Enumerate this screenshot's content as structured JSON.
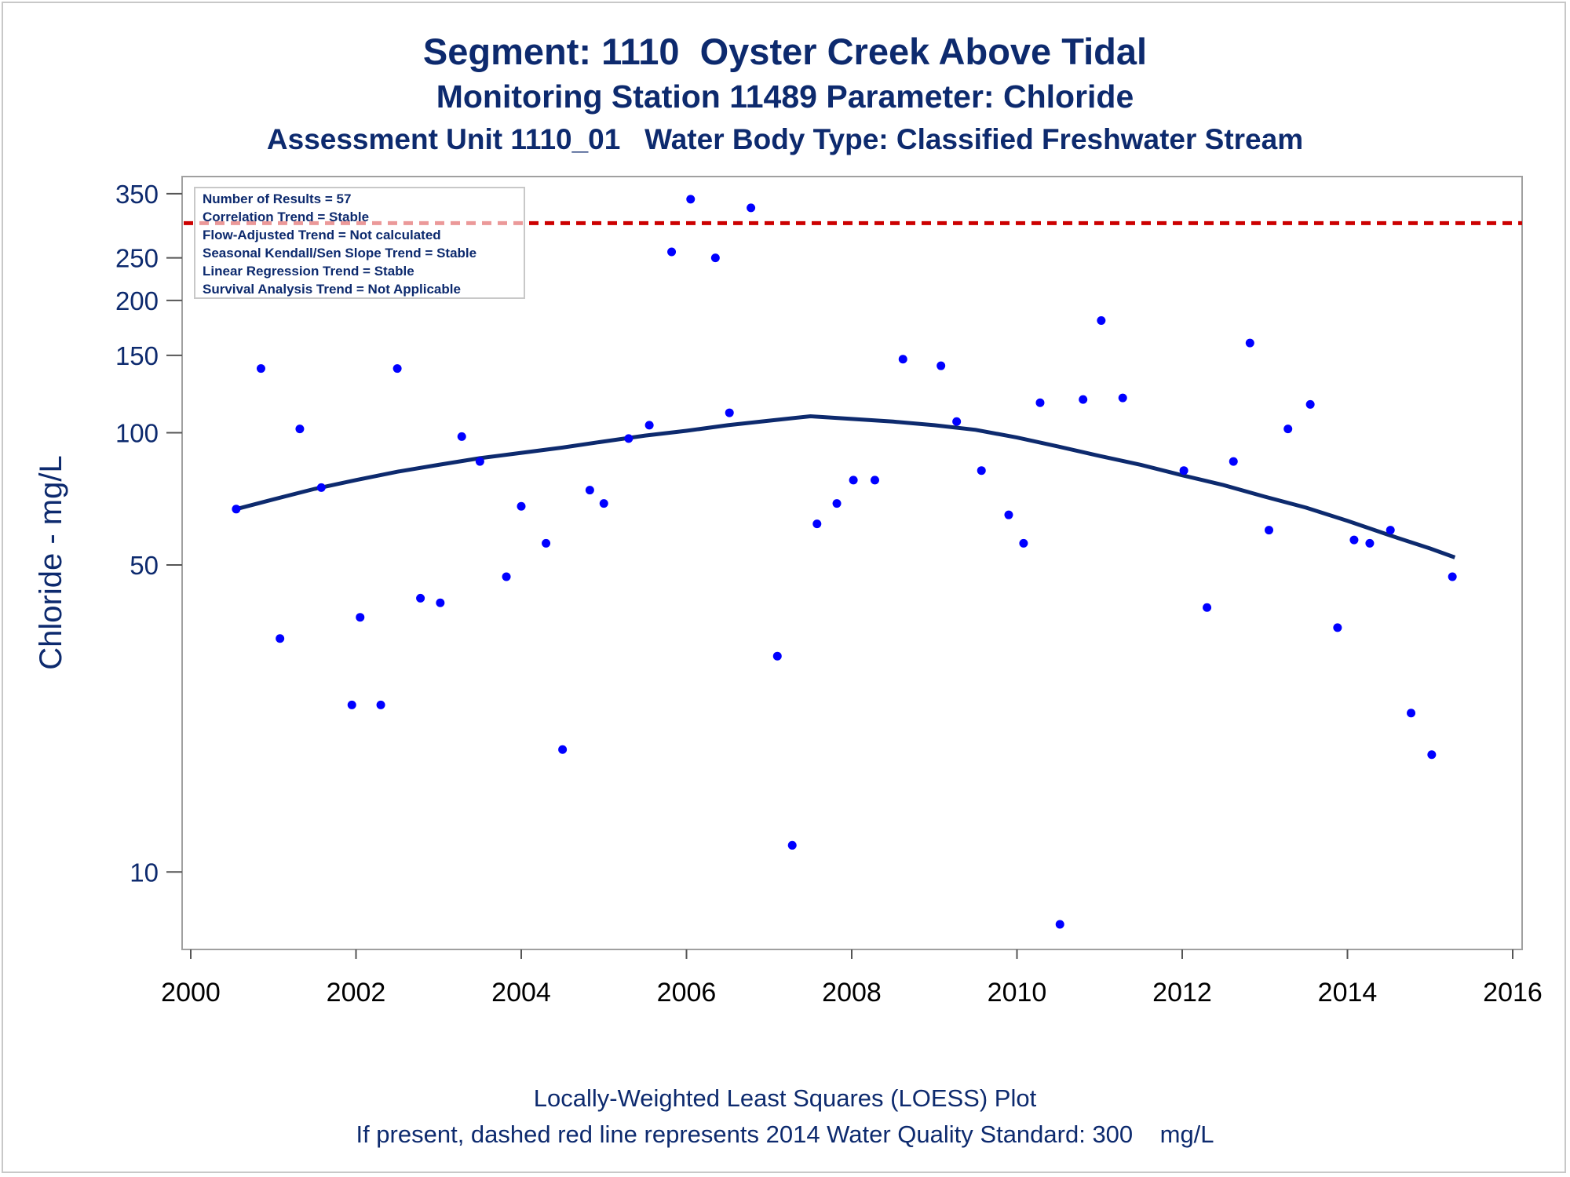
{
  "header": {
    "title": "Segment: 1110  Oyster Creek Above Tidal",
    "subtitle1": "Monitoring Station 11489 Parameter: Chloride",
    "subtitle2": "Assessment Unit 1110_01   Water Body Type: Classified Freshwater Stream"
  },
  "footer": {
    "line1": "Locally-Weighted Least Squares (LOESS) Plot",
    "line2": "If present, dashed red line represents 2014 Water Quality Standard: 300    mg/L"
  },
  "stats_box": {
    "lines": [
      "Number of Results = 57",
      "Correlation Trend = Stable",
      "Flow-Adjusted Trend = Not calculated",
      "Seasonal Kendall/Sen Slope Trend = Stable",
      "Linear Regression Trend = Stable",
      "Survival Analysis Trend = Not Applicable"
    ]
  },
  "colors": {
    "points": "#0000ff",
    "loess": "#0d2a6e",
    "standard_line": "#cc0000",
    "text": "#0d2a6e"
  },
  "chart_data": {
    "type": "scatter",
    "ylabel": "Chloride - mg/L",
    "xlabel": "",
    "y_scale": "log",
    "xlim": [
      2000,
      2016
    ],
    "ylim": [
      7,
      360
    ],
    "x_ticks": [
      2000,
      2002,
      2004,
      2006,
      2008,
      2010,
      2012,
      2014,
      2016
    ],
    "y_ticks": [
      10,
      50,
      100,
      150,
      200,
      250,
      350
    ],
    "grid": false,
    "standard_line": {
      "value": 300,
      "style": "dashed",
      "color": "#cc0000"
    },
    "series": [
      {
        "kind": "points",
        "points": [
          [
            2000.55,
            67
          ],
          [
            2000.85,
            140
          ],
          [
            2001.08,
            34
          ],
          [
            2001.32,
            102
          ],
          [
            2001.58,
            75
          ],
          [
            2001.95,
            24
          ],
          [
            2002.05,
            38
          ],
          [
            2002.3,
            24
          ],
          [
            2002.5,
            140
          ],
          [
            2002.78,
            42
          ],
          [
            2003.02,
            41
          ],
          [
            2003.28,
            98
          ],
          [
            2003.5,
            86
          ],
          [
            2003.82,
            47
          ],
          [
            2004.0,
            68
          ],
          [
            2004.3,
            56
          ],
          [
            2004.5,
            19
          ],
          [
            2004.83,
            74
          ],
          [
            2005.0,
            69
          ],
          [
            2005.3,
            97
          ],
          [
            2005.55,
            104
          ],
          [
            2005.82,
            258
          ],
          [
            2006.05,
            340
          ],
          [
            2006.35,
            250
          ],
          [
            2006.52,
            111
          ],
          [
            2006.78,
            325
          ],
          [
            2007.1,
            31
          ],
          [
            2007.28,
            11.5
          ],
          [
            2007.58,
            62
          ],
          [
            2007.82,
            69
          ],
          [
            2008.02,
            78
          ],
          [
            2008.28,
            78
          ],
          [
            2008.62,
            147
          ],
          [
            2009.08,
            142
          ],
          [
            2009.27,
            106
          ],
          [
            2009.57,
            82
          ],
          [
            2009.9,
            65
          ],
          [
            2010.08,
            56
          ],
          [
            2010.52,
            7.6
          ],
          [
            2010.28,
            117
          ],
          [
            2010.8,
            119
          ],
          [
            2011.02,
            180
          ],
          [
            2011.28,
            120
          ],
          [
            2012.02,
            82
          ],
          [
            2012.3,
            40
          ],
          [
            2012.62,
            86
          ],
          [
            2012.82,
            160
          ],
          [
            2013.05,
            60
          ],
          [
            2013.28,
            102
          ],
          [
            2013.55,
            116
          ],
          [
            2013.88,
            36
          ],
          [
            2014.08,
            57
          ],
          [
            2014.27,
            56
          ],
          [
            2014.52,
            60
          ],
          [
            2014.77,
            23
          ],
          [
            2015.02,
            18.5
          ],
          [
            2015.27,
            47
          ]
        ]
      },
      {
        "kind": "loess",
        "points": [
          [
            2000.55,
            67
          ],
          [
            2001.0,
            70.5
          ],
          [
            2001.5,
            74.5
          ],
          [
            2002.0,
            78
          ],
          [
            2002.5,
            81.5
          ],
          [
            2003.0,
            84.5
          ],
          [
            2003.5,
            87.5
          ],
          [
            2004.0,
            90
          ],
          [
            2004.5,
            92.5
          ],
          [
            2005.0,
            95.5
          ],
          [
            2005.5,
            98.5
          ],
          [
            2006.0,
            101
          ],
          [
            2006.5,
            104
          ],
          [
            2007.0,
            106.5
          ],
          [
            2007.5,
            109
          ],
          [
            2008.0,
            107.5
          ],
          [
            2008.5,
            106
          ],
          [
            2009.0,
            104
          ],
          [
            2009.5,
            101.5
          ],
          [
            2010.0,
            97.5
          ],
          [
            2010.5,
            93
          ],
          [
            2011.0,
            88.5
          ],
          [
            2011.5,
            84.5
          ],
          [
            2012.0,
            80
          ],
          [
            2012.5,
            76
          ],
          [
            2013.0,
            71.5
          ],
          [
            2013.5,
            67.5
          ],
          [
            2014.0,
            63
          ],
          [
            2014.5,
            58.5
          ],
          [
            2015.0,
            54.5
          ],
          [
            2015.3,
            52
          ]
        ]
      }
    ]
  }
}
